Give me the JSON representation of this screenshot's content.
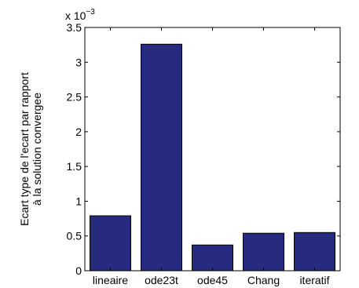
{
  "chart_data": {
    "type": "bar",
    "categories": [
      "lineaire",
      "ode23t",
      "ode45",
      "Chang",
      "iteratif"
    ],
    "values": [
      0.00079,
      0.00326,
      0.00037,
      0.00054,
      0.00055
    ],
    "ylabel_lines": [
      "Ecart type de l'ecart par rapport",
      "à la solution convergee"
    ],
    "xlabel": "",
    "ylim": [
      0,
      0.0035
    ],
    "yticks": [
      0,
      0.0005,
      0.001,
      0.0015,
      0.002,
      0.0025,
      0.003,
      0.0035
    ],
    "ytick_labels": [
      "0",
      "0.5",
      "1",
      "1.5",
      "2",
      "2.5",
      "3",
      "3.5"
    ],
    "y_exponent": {
      "base": "x 10",
      "power": "−3"
    },
    "grid": false,
    "bar_color": "#262B80"
  }
}
